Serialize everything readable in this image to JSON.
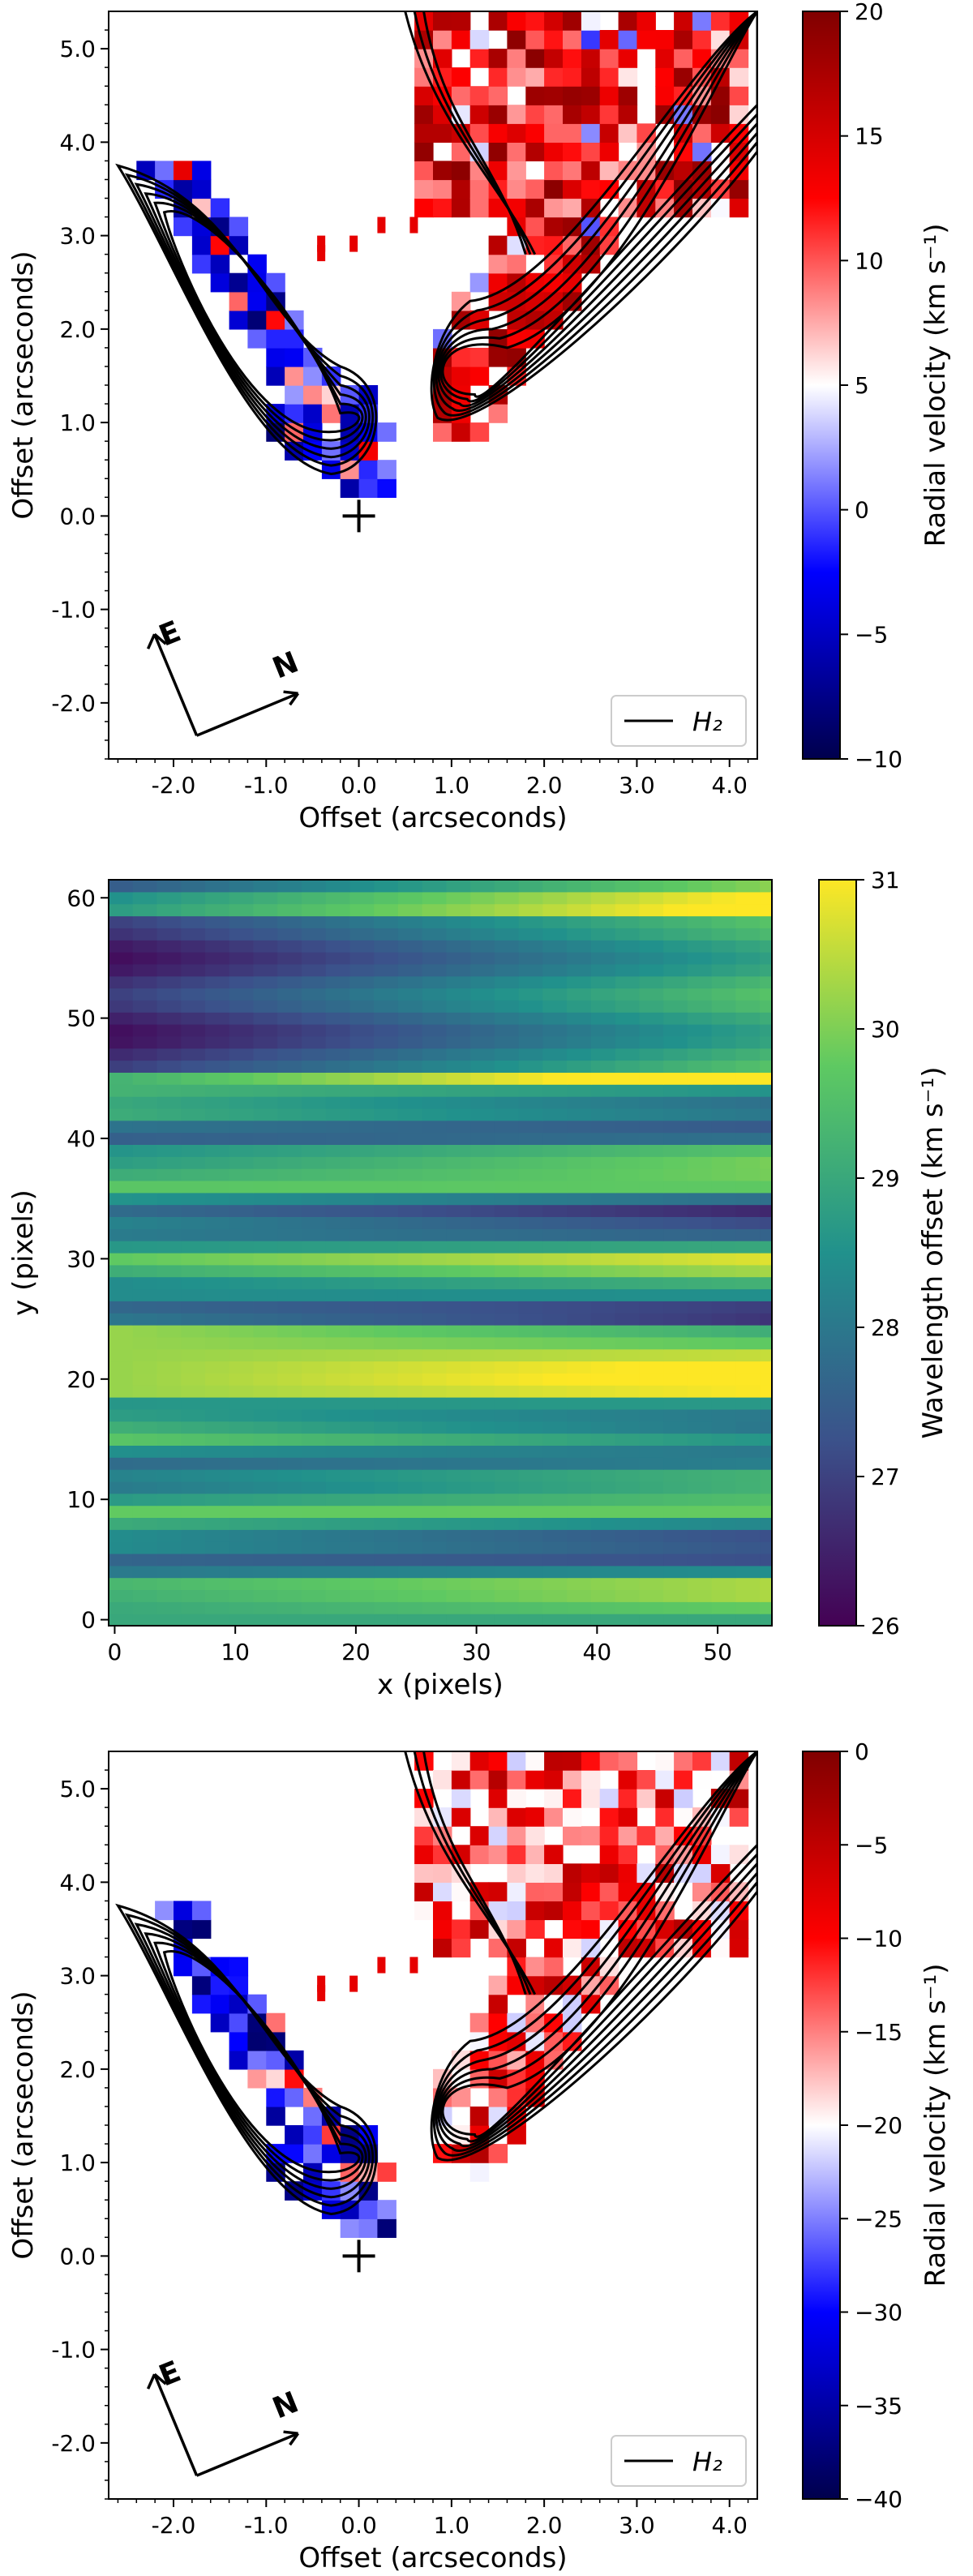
{
  "chart_data": [
    {
      "type": "heatmap",
      "title": "",
      "xlabel": "Offset (arcseconds)",
      "ylabel": "Offset (arcseconds)",
      "xlim": [
        -2.7,
        4.3
      ],
      "ylim": [
        -2.6,
        5.4
      ],
      "xticks": [
        "-2.0",
        "-1.0",
        "0.0",
        "1.0",
        "2.0",
        "3.0",
        "4.0"
      ],
      "yticks": [
        "-2.0",
        "-1.0",
        "0.0",
        "1.0",
        "2.0",
        "3.0",
        "4.0",
        "5.0"
      ],
      "colorbar": {
        "label": "Radial velocity (km s⁻¹)",
        "min": -10,
        "max": 20,
        "ticks": [
          "20",
          "15",
          "10",
          "5",
          "0",
          "−5",
          "−10"
        ],
        "colormap": "seismic"
      },
      "legend": {
        "entry": "H₂",
        "placement": "bottom-right"
      },
      "source_marker": [
        0.0,
        0.0
      ],
      "compass": {
        "east_label": "E",
        "north_label": "N",
        "placement": "bottom-left"
      },
      "grid": false
    },
    {
      "type": "heatmap",
      "title": "",
      "xlabel": "x (pixels)",
      "ylabel": "y (pixels)",
      "xlim": [
        -0.5,
        54.5
      ],
      "ylim": [
        -0.5,
        61.5
      ],
      "xticks": [
        "0",
        "10",
        "20",
        "30",
        "40",
        "50"
      ],
      "yticks": [
        "0",
        "10",
        "20",
        "30",
        "40",
        "50",
        "60"
      ],
      "colorbar": {
        "label": "Wavelength offset (km s⁻¹)",
        "min": 26,
        "max": 31,
        "ticks": [
          "31",
          "30",
          "29",
          "28",
          "27",
          "26"
        ],
        "colormap": "viridis"
      },
      "grid": false
    },
    {
      "type": "heatmap",
      "title": "",
      "xlabel": "Offset (arcseconds)",
      "ylabel": "Offset (arcseconds)",
      "xlim": [
        -2.7,
        4.3
      ],
      "ylim": [
        -2.6,
        5.4
      ],
      "xticks": [
        "-2.0",
        "-1.0",
        "0.0",
        "1.0",
        "2.0",
        "3.0",
        "4.0"
      ],
      "yticks": [
        "-2.0",
        "-1.0",
        "0.0",
        "1.0",
        "2.0",
        "3.0",
        "4.0",
        "5.0"
      ],
      "colorbar": {
        "label": "Radial velocity (km s⁻¹)",
        "min": -40,
        "max": 0,
        "ticks": [
          "0",
          "−5",
          "−10",
          "−15",
          "−20",
          "−25",
          "−30",
          "−35",
          "−40"
        ],
        "colormap": "seismic"
      },
      "legend": {
        "entry": "H₂",
        "placement": "bottom-right"
      },
      "source_marker": [
        0.0,
        0.0
      ],
      "compass": {
        "east_label": "E",
        "north_label": "N",
        "placement": "bottom-left"
      },
      "grid": false
    }
  ]
}
